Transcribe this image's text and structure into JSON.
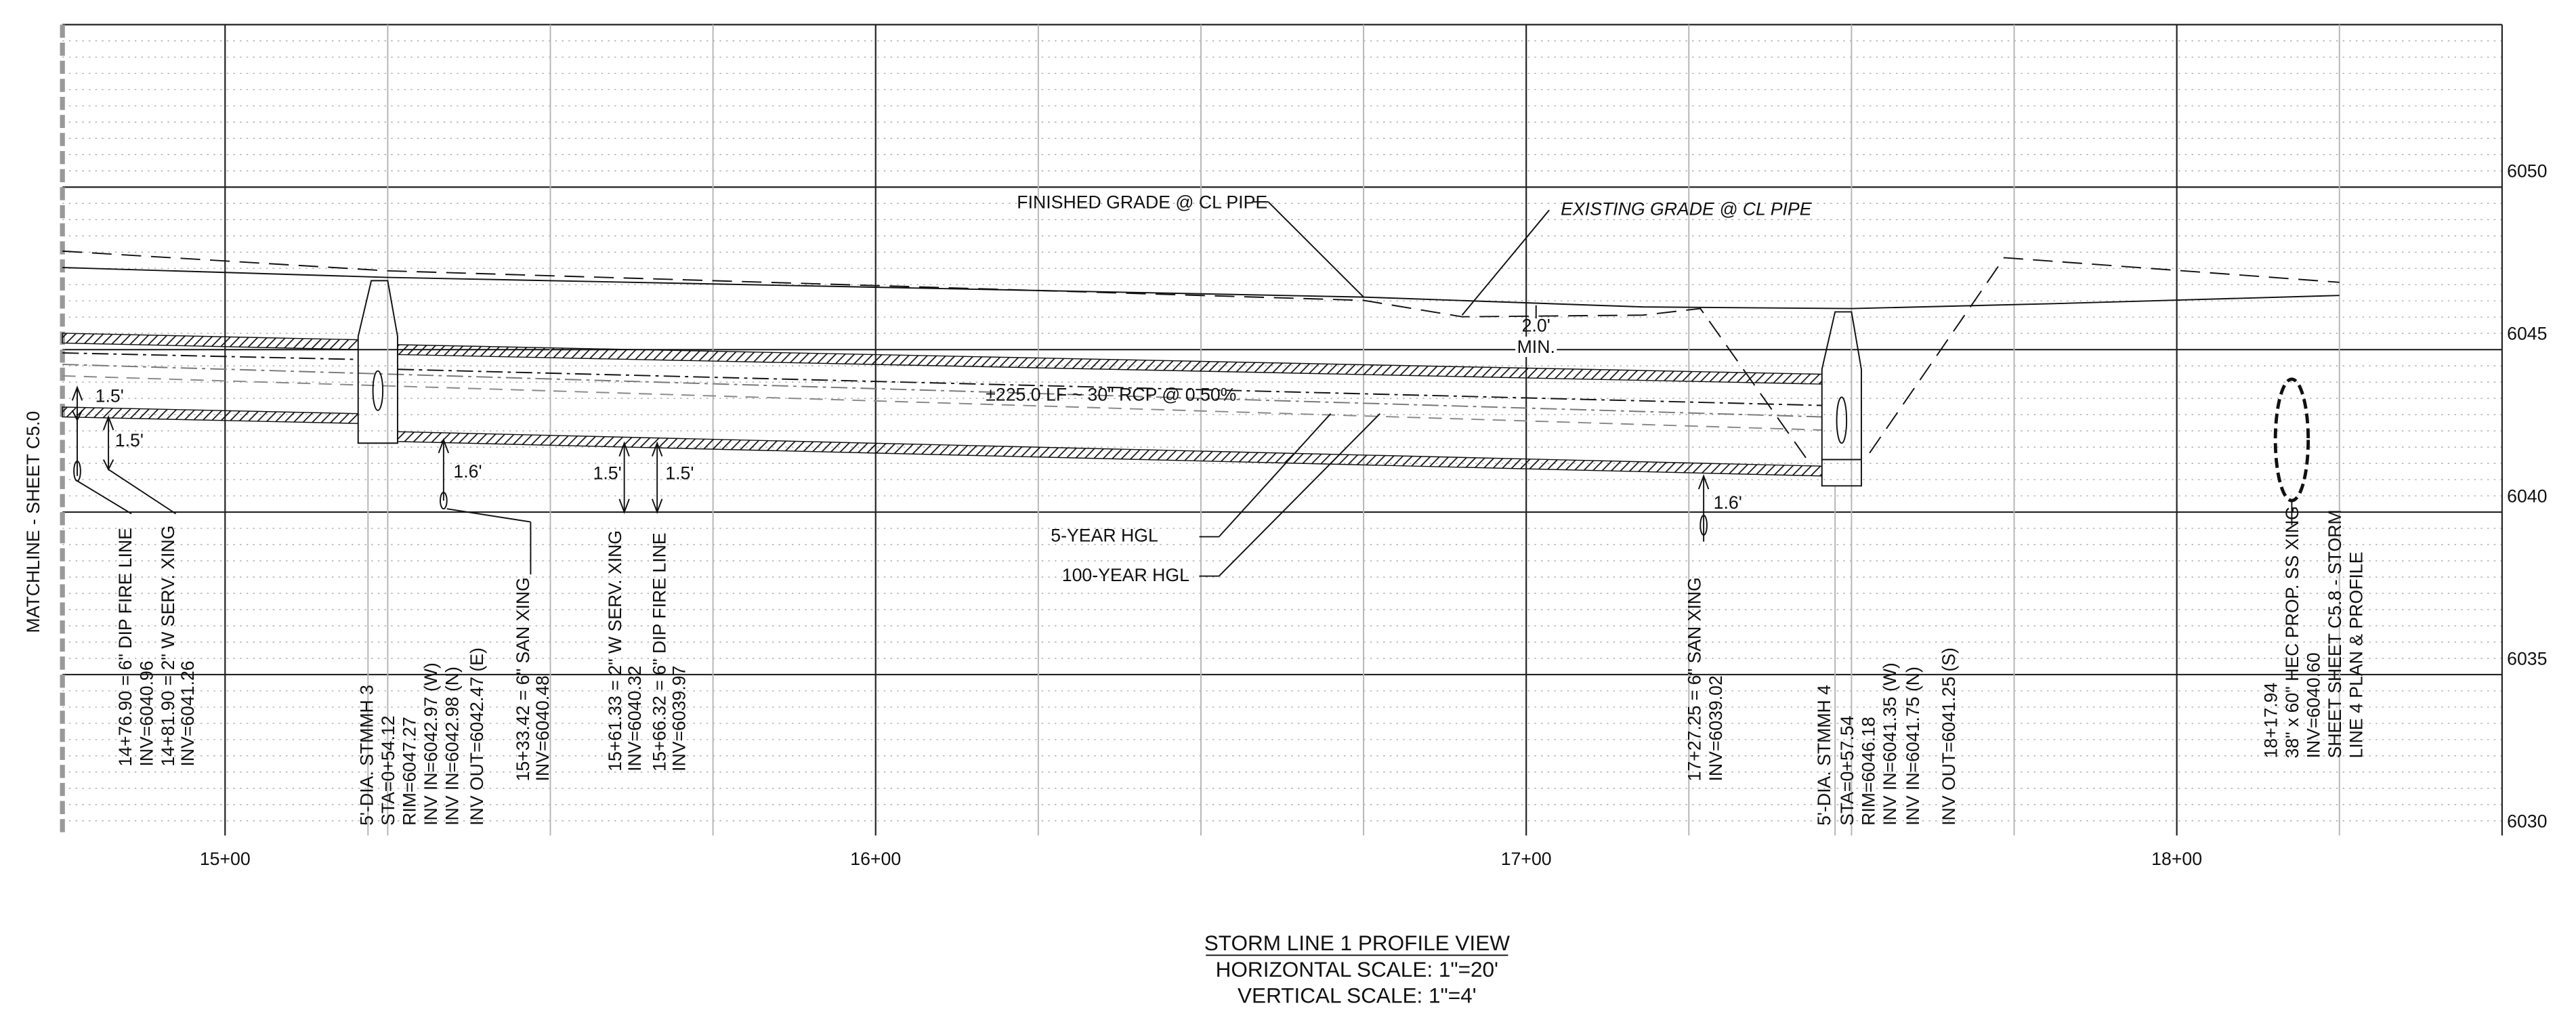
{
  "sheet_label": "MATCHLINE - SHEET C5.0",
  "elevations": [
    "6050",
    "6045",
    "6040",
    "6035",
    "6030"
  ],
  "stations": [
    "15+00",
    "16+00",
    "17+00",
    "18+00"
  ],
  "title": {
    "name": "STORM LINE 1 PROFILE VIEW",
    "horizontal_scale": "HORIZONTAL SCALE: 1\"=20'",
    "vertical_scale": "VERTICAL SCALE: 1\"=4'"
  },
  "callouts": [
    "FINISHED GRADE @ CL PIPE",
    "EXISTING GRADE @ CL PIPE",
    "2.0'",
    "MIN.",
    "±225.0 LF ~ 30\" RCP @ 0.50%",
    "5-YEAR HGL",
    "100-YEAR HGL",
    "1.5'",
    "1.5'",
    "1.6'",
    "1.5'",
    "1.5'",
    "1.6'"
  ],
  "notes": [
    [
      "14+76.90 = 6\" DIP FIRE LINE",
      "INV=6040.96",
      "14+81.90 = 2\" W SERV. XING",
      "INV=6041.26"
    ],
    [
      "5'-DIA. STMMH 3",
      "STA=0+54.12",
      "RIM=6047.27",
      "INV IN=6042.97 (W)",
      "INV IN=6042.98 (N)",
      "INV OUT=6042.47 (E)"
    ],
    [
      "15+33.42 = 6\" SAN XING",
      "INV=6040.48"
    ],
    [
      "15+61.33 = 2\" W SERV. XING",
      "INV=6040.32",
      "15+66.32 = 6\" DIP FIRE LINE",
      "INV=6039.97"
    ],
    [
      "17+27.25 = 6\" SAN XING",
      "INV=6039.02"
    ],
    [
      "5'-DIA. STMMH 4",
      "STA=0+57.54",
      "RIM=6046.18",
      "INV IN=6041.35 (W)",
      "INV IN=6041.75 (N)",
      "INV OUT=6041.25 (S)"
    ],
    [
      "18+17.94",
      "38\" x 60\" HEC PROP. SS XING",
      "INV=6040.60",
      "SHEET SHEET C5.8 - STORM",
      "LINE 4  PLAN & PROFILE"
    ]
  ]
}
